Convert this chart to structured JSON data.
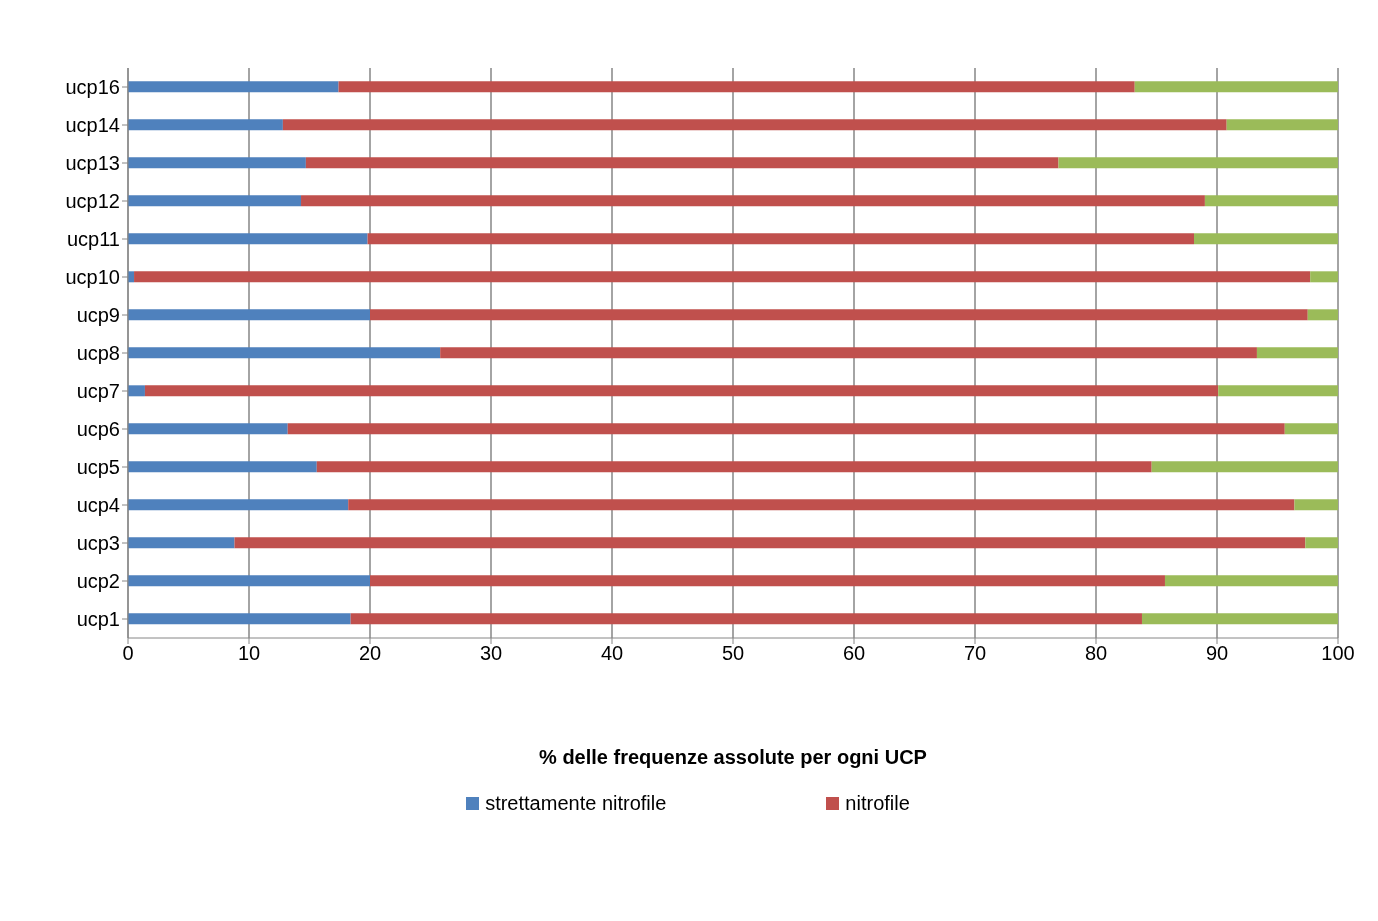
{
  "chart_data": {
    "type": "bar",
    "orientation": "horizontal",
    "stacked": true,
    "xlabel": "% delle frequenze assolute per ogni UCP",
    "categories": [
      "ucp16",
      "ucp14",
      "ucp13",
      "ucp12",
      "ucp11",
      "ucp10",
      "ucp9",
      "ucp8",
      "ucp7",
      "ucp6",
      "ucp5",
      "ucp4",
      "ucp3",
      "ucp2",
      "ucp1"
    ],
    "series": [
      {
        "name": "strettamente nitrofile",
        "color": "#4f81bd",
        "values": [
          17.4,
          12.8,
          14.7,
          14.3,
          19.8,
          0.5,
          20.0,
          25.8,
          1.4,
          13.2,
          15.6,
          18.2,
          8.8,
          20.0,
          18.4
        ]
      },
      {
        "name": "nitrofile",
        "color": "#c0504d",
        "values": [
          65.8,
          78.0,
          62.2,
          74.7,
          68.3,
          97.2,
          77.5,
          67.5,
          88.7,
          82.4,
          69.0,
          78.2,
          88.5,
          65.7,
          65.4
        ]
      },
      {
        "color": "#9bbb59",
        "values": [
          16.8,
          9.2,
          23.1,
          11.0,
          11.9,
          2.3,
          2.5,
          6.7,
          9.9,
          4.4,
          15.4,
          3.6,
          2.7,
          14.3,
          16.2
        ]
      }
    ],
    "xlim": [
      0,
      100
    ],
    "xticks": [
      0,
      10,
      20,
      30,
      40,
      50,
      60,
      70,
      80,
      90,
      100
    ],
    "grid": "x",
    "legend": "bottom"
  }
}
